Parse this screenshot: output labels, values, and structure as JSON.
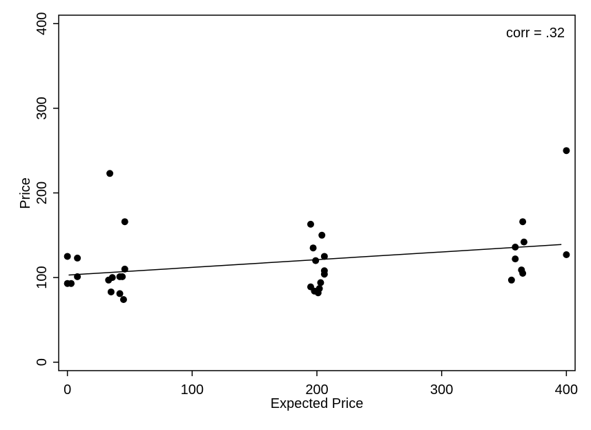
{
  "chart_data": {
    "type": "scatter",
    "xlabel": "Expected Price",
    "ylabel": "Price",
    "annotation": "corr = .32",
    "xlim": [
      -7,
      407
    ],
    "ylim": [
      -10,
      410
    ],
    "x_ticks": [
      0,
      100,
      200,
      300,
      400
    ],
    "x_tick_labels": [
      "0",
      "100",
      "200",
      "300",
      "400"
    ],
    "y_ticks": [
      0,
      100,
      200,
      300,
      400
    ],
    "y_tick_labels": [
      "0",
      "100",
      "200",
      "300",
      "400"
    ],
    "grid": false,
    "marker_color": "#000000",
    "fit_line": {
      "x": [
        1,
        396
      ],
      "y": [
        103,
        139
      ]
    },
    "points": [
      {
        "x": 0,
        "y": 125
      },
      {
        "x": 0,
        "y": 93
      },
      {
        "x": 3,
        "y": 93
      },
      {
        "x": 8,
        "y": 123
      },
      {
        "x": 8,
        "y": 101
      },
      {
        "x": 34,
        "y": 223
      },
      {
        "x": 33,
        "y": 97
      },
      {
        "x": 36,
        "y": 100
      },
      {
        "x": 35,
        "y": 83
      },
      {
        "x": 42,
        "y": 101
      },
      {
        "x": 44,
        "y": 101
      },
      {
        "x": 42,
        "y": 81
      },
      {
        "x": 45,
        "y": 74
      },
      {
        "x": 46,
        "y": 110
      },
      {
        "x": 46,
        "y": 166
      },
      {
        "x": 195,
        "y": 163
      },
      {
        "x": 197,
        "y": 135
      },
      {
        "x": 199,
        "y": 120
      },
      {
        "x": 195,
        "y": 89
      },
      {
        "x": 198,
        "y": 84
      },
      {
        "x": 201,
        "y": 82
      },
      {
        "x": 202,
        "y": 87
      },
      {
        "x": 203,
        "y": 94
      },
      {
        "x": 204,
        "y": 150
      },
      {
        "x": 206,
        "y": 125
      },
      {
        "x": 206,
        "y": 108
      },
      {
        "x": 206,
        "y": 104
      },
      {
        "x": 356,
        "y": 97
      },
      {
        "x": 359,
        "y": 122
      },
      {
        "x": 359,
        "y": 136
      },
      {
        "x": 364,
        "y": 109
      },
      {
        "x": 365,
        "y": 105
      },
      {
        "x": 365,
        "y": 166
      },
      {
        "x": 366,
        "y": 142
      },
      {
        "x": 400,
        "y": 250
      },
      {
        "x": 400,
        "y": 127
      }
    ]
  }
}
